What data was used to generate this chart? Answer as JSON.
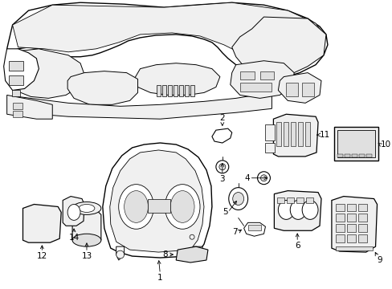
{
  "background_color": "#ffffff",
  "figure_width": 4.89,
  "figure_height": 3.6,
  "dpi": 100,
  "label_fontsize": 7.5,
  "lw_main": 0.9,
  "lw_detail": 0.5,
  "fc_white": "#ffffff",
  "fc_light": "#f0f0f0",
  "fc_med": "#e0e0e0",
  "fc_dark": "#cccccc"
}
